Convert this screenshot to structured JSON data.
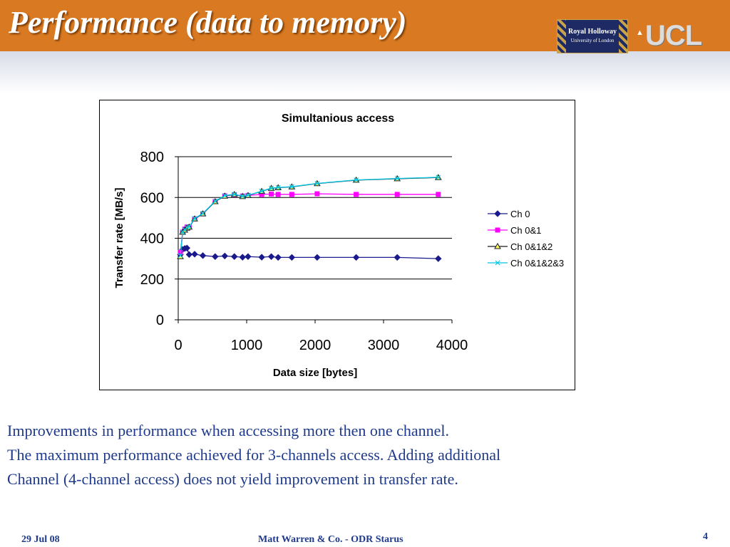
{
  "slide": {
    "title": "Performance (data to memory)",
    "logos": {
      "royal_holloway": "Royal Holloway",
      "royal_holloway_sub": "University of London",
      "ucl": "UCL"
    },
    "caption_lines": [
      "Improvements in performance when accessing more then one channel.",
      "The maximum performance achieved for 3-channels access. Adding additional",
      "Channel (4-channel access) does not yield improvement in transfer rate."
    ],
    "footer": {
      "date": "29 Jul 08",
      "author": "Matt Warren & Co. -  ODR Starus",
      "page": "4"
    },
    "colors": {
      "header": "#d97a22",
      "text": "#1f3a8a"
    }
  },
  "chart_data": {
    "type": "line",
    "title": "Simultanious access",
    "xlabel": "Data size [bytes]",
    "ylabel": "Transfer rate [MB/s]",
    "xlim": [
      0,
      4000
    ],
    "ylim": [
      0,
      800
    ],
    "xticks": [
      "0",
      "1000",
      "2000",
      "3000",
      "4000"
    ],
    "yticks": [
      "0",
      "200",
      "400",
      "600",
      "800"
    ],
    "grid": "horizontal",
    "legend": "right",
    "series": [
      {
        "name": "Ch 0",
        "color": "#1a1a8c",
        "marker": "diamond",
        "points": [
          [
            32,
            320
          ],
          [
            64,
            345
          ],
          [
            96,
            350
          ],
          [
            128,
            352
          ],
          [
            160,
            320
          ],
          [
            240,
            322
          ],
          [
            360,
            315
          ],
          [
            540,
            310
          ],
          [
            680,
            313
          ],
          [
            820,
            310
          ],
          [
            940,
            307
          ],
          [
            1020,
            310
          ],
          [
            1220,
            307
          ],
          [
            1360,
            310
          ],
          [
            1460,
            306
          ],
          [
            1660,
            306
          ],
          [
            2030,
            306
          ],
          [
            2600,
            306
          ],
          [
            3200,
            306
          ],
          [
            3800,
            300
          ]
        ]
      },
      {
        "name": "Ch 0&1",
        "color": "#ff00ff",
        "marker": "square",
        "points": [
          [
            32,
            330
          ],
          [
            64,
            430
          ],
          [
            96,
            445
          ],
          [
            128,
            455
          ],
          [
            160,
            455
          ],
          [
            240,
            495
          ],
          [
            360,
            520
          ],
          [
            540,
            580
          ],
          [
            680,
            608
          ],
          [
            820,
            613
          ],
          [
            940,
            607
          ],
          [
            1020,
            610
          ],
          [
            1220,
            615
          ],
          [
            1360,
            617
          ],
          [
            1460,
            615
          ],
          [
            1660,
            615
          ],
          [
            2030,
            618
          ],
          [
            2600,
            615
          ],
          [
            3200,
            615
          ],
          [
            3800,
            615
          ]
        ]
      },
      {
        "name": "Ch 0&1&2",
        "color": "#1a1a1a",
        "marker": "triangle",
        "fill": "#ffff66",
        "points": [
          [
            32,
            310
          ],
          [
            64,
            430
          ],
          [
            96,
            440
          ],
          [
            128,
            450
          ],
          [
            160,
            455
          ],
          [
            240,
            495
          ],
          [
            360,
            520
          ],
          [
            540,
            580
          ],
          [
            680,
            607
          ],
          [
            820,
            615
          ],
          [
            940,
            605
          ],
          [
            1020,
            610
          ],
          [
            1220,
            630
          ],
          [
            1360,
            645
          ],
          [
            1460,
            648
          ],
          [
            1660,
            652
          ],
          [
            2030,
            668
          ],
          [
            2600,
            685
          ],
          [
            3200,
            692
          ],
          [
            3800,
            698
          ]
        ]
      },
      {
        "name": "Ch 0&1&2&3",
        "color": "#00c8e8",
        "marker": "x",
        "points": [
          [
            32,
            315
          ],
          [
            64,
            432
          ],
          [
            96,
            442
          ],
          [
            128,
            452
          ],
          [
            160,
            457
          ],
          [
            240,
            497
          ],
          [
            360,
            522
          ],
          [
            540,
            582
          ],
          [
            680,
            609
          ],
          [
            820,
            616
          ],
          [
            940,
            606
          ],
          [
            1020,
            611
          ],
          [
            1220,
            631
          ],
          [
            1360,
            646
          ],
          [
            1460,
            649
          ],
          [
            1660,
            653
          ],
          [
            2030,
            669
          ],
          [
            2600,
            686
          ],
          [
            3200,
            693
          ],
          [
            3800,
            699
          ]
        ]
      }
    ]
  }
}
